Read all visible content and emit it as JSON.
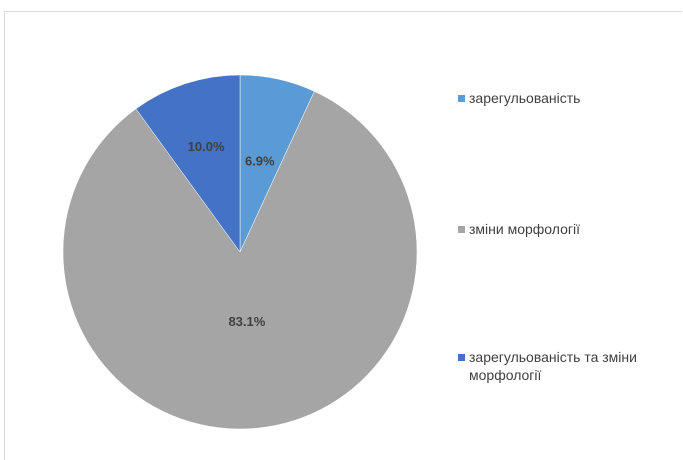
{
  "chart_data": {
    "type": "pie",
    "title": "",
    "start_angle_deg": 0,
    "direction": "clockwise",
    "slices": [
      {
        "label": "зарегульованість",
        "value": 6.9,
        "value_label": "6.9%",
        "color": "#5b9bd5"
      },
      {
        "label": "зміни морфології",
        "value": 83.1,
        "value_label": "83.1%",
        "color": "#a5a5a5"
      },
      {
        "label": "зарегульованість та зміни морфології",
        "value": 10.0,
        "value_label": "10.0%",
        "color": "#4472c4"
      }
    ],
    "legend_position": "right"
  }
}
